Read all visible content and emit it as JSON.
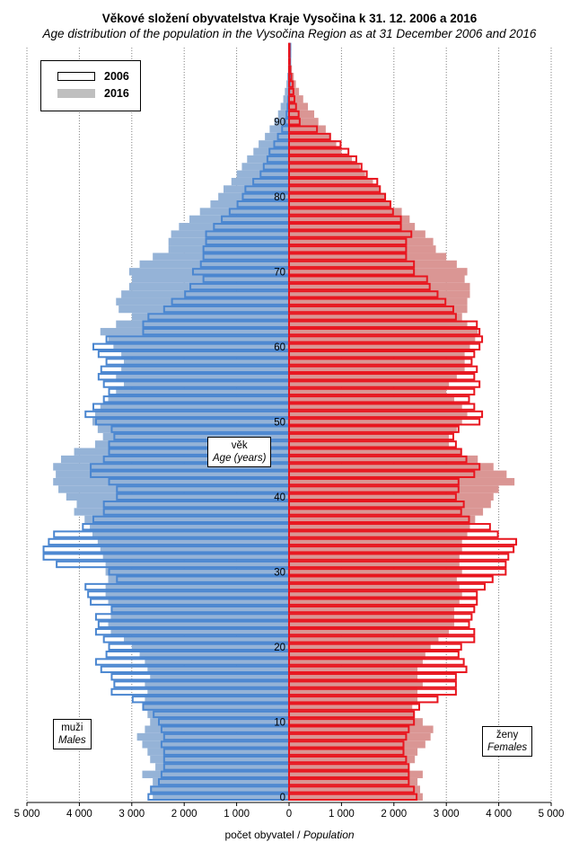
{
  "title": "Věkové složení obyvatelstva  Kraje Vysočina k 31. 12. 2006 a 2016",
  "subtitle": "Age distribution of the population  in the Vysočina Region  as at 31 December 2006 and 2016",
  "legend": {
    "label_2006": "2006",
    "label_2016": "2016"
  },
  "left_box": {
    "cz": "muži",
    "en": "Males"
  },
  "right_box": {
    "cz": "ženy",
    "en": "Females"
  },
  "center_box": {
    "cz": "věk",
    "en": "Age (years)"
  },
  "xlabel_cz": "počet obyvatel /",
  "xlabel_en": "Population",
  "colors": {
    "male_2016": "#95b3d7",
    "male_2006": "#4a86d0",
    "female_2016": "#da9694",
    "female_2006": "#e8151e"
  },
  "chart_data": {
    "type": "bar",
    "orientation": "horizontal-population-pyramid",
    "title": "Věkové složení obyvatelstva  Kraje Vysočina k 31. 12. 2006 a 2016",
    "xlabel": "počet obyvatel / Population",
    "ylabel": "věk / Age (years)",
    "xlim": [
      -5000,
      5000
    ],
    "ylim": [
      0,
      100
    ],
    "x_ticks": [
      -5000,
      -4000,
      -3000,
      -2000,
      -1000,
      0,
      1000,
      2000,
      3000,
      4000,
      5000
    ],
    "x_tick_labels": [
      "5 000",
      "4 000",
      "3 000",
      "2 000",
      "1 000",
      "0",
      "1 000",
      "2 000",
      "3 000",
      "4 000",
      "5 000"
    ],
    "y_ticks": [
      0,
      10,
      20,
      30,
      40,
      50,
      60,
      70,
      80,
      90
    ],
    "ages": [
      0,
      1,
      2,
      3,
      4,
      5,
      6,
      7,
      8,
      9,
      10,
      11,
      12,
      13,
      14,
      15,
      16,
      17,
      18,
      19,
      20,
      21,
      22,
      23,
      24,
      25,
      26,
      27,
      28,
      29,
      30,
      31,
      32,
      33,
      34,
      35,
      36,
      37,
      38,
      39,
      40,
      41,
      42,
      43,
      44,
      45,
      46,
      47,
      48,
      49,
      50,
      51,
      52,
      53,
      54,
      55,
      56,
      57,
      58,
      59,
      60,
      61,
      62,
      63,
      64,
      65,
      66,
      67,
      68,
      69,
      70,
      71,
      72,
      73,
      74,
      75,
      76,
      77,
      78,
      79,
      80,
      81,
      82,
      83,
      84,
      85,
      86,
      87,
      88,
      89,
      90,
      91,
      92,
      93,
      94,
      95,
      96,
      97,
      98,
      99,
      100
    ],
    "series": [
      {
        "name": "muži 2016",
        "values": [
          2600,
          2650,
          2600,
          2800,
          2550,
          2650,
          2700,
          2800,
          2900,
          2750,
          2650,
          2700,
          2800,
          2750,
          2700,
          2750,
          2650,
          2700,
          2750,
          2850,
          3000,
          3150,
          3400,
          3450,
          3400,
          3400,
          3450,
          3500,
          3500,
          3450,
          3500,
          3500,
          3550,
          3600,
          3650,
          3750,
          3800,
          3900,
          4100,
          4050,
          4250,
          4400,
          4500,
          4450,
          4500,
          4350,
          4100,
          3700,
          3550,
          3650,
          3750,
          3700,
          3600,
          3450,
          3300,
          3150,
          3300,
          3200,
          3150,
          3200,
          3350,
          3450,
          3600,
          3300,
          3000,
          3250,
          3300,
          3200,
          3050,
          3000,
          3050,
          2850,
          2600,
          2300,
          2300,
          2250,
          2100,
          1900,
          1700,
          1500,
          1350,
          1250,
          1100,
          1000,
          900,
          800,
          680,
          580,
          460,
          370,
          280,
          210,
          160,
          110,
          80,
          50,
          35,
          20,
          12,
          6,
          3
        ]
      },
      {
        "name": "muži 2006",
        "values": [
          2700,
          2650,
          2500,
          2450,
          2400,
          2400,
          2400,
          2450,
          2400,
          2450,
          2500,
          2600,
          2800,
          3000,
          3400,
          3350,
          3400,
          3600,
          3700,
          3500,
          3450,
          3550,
          3700,
          3650,
          3700,
          3400,
          3800,
          3850,
          3900,
          3300,
          3450,
          4450,
          4700,
          4700,
          4600,
          4500,
          3950,
          3750,
          3550,
          3550,
          3300,
          3300,
          3450,
          3800,
          3800,
          3550,
          3450,
          3450,
          3350,
          3400,
          3700,
          3900,
          3750,
          3550,
          3450,
          3550,
          3650,
          3600,
          3500,
          3650,
          3750,
          3500,
          2800,
          2800,
          2700,
          2400,
          2250,
          2000,
          1900,
          1650,
          1850,
          1700,
          1650,
          1650,
          1600,
          1600,
          1450,
          1300,
          1150,
          1000,
          900,
          850,
          700,
          560,
          500,
          430,
          390,
          300,
          230,
          150,
          90,
          65,
          45,
          30,
          20,
          13,
          8,
          5,
          3,
          2,
          1
        ]
      },
      {
        "name": "ženy 2016",
        "values": [
          2550,
          2500,
          2450,
          2550,
          2300,
          2400,
          2450,
          2600,
          2700,
          2750,
          2550,
          2400,
          2350,
          2450,
          2450,
          2550,
          2450,
          2450,
          2550,
          2600,
          2700,
          2850,
          3050,
          3150,
          3150,
          3150,
          3250,
          3300,
          3250,
          3200,
          3300,
          3250,
          3250,
          3300,
          3300,
          3400,
          3450,
          3550,
          3700,
          3850,
          3900,
          4000,
          4300,
          4150,
          3900,
          3600,
          3300,
          3050,
          3050,
          3200,
          3300,
          3400,
          3300,
          3150,
          3000,
          3050,
          3200,
          3350,
          3350,
          3350,
          3450,
          3550,
          3600,
          3400,
          3300,
          3400,
          3400,
          3450,
          3450,
          3350,
          3400,
          3200,
          3000,
          2800,
          2750,
          2600,
          2400,
          2300,
          2150,
          1950,
          1850,
          1750,
          1600,
          1450,
          1350,
          1200,
          1000,
          900,
          800,
          700,
          560,
          480,
          360,
          270,
          190,
          130,
          90,
          55,
          30,
          18,
          8
        ]
      },
      {
        "name": "ženy 2006",
        "values": [
          2450,
          2400,
          2300,
          2300,
          2300,
          2250,
          2200,
          2200,
          2250,
          2300,
          2400,
          2400,
          2500,
          2850,
          3200,
          3200,
          3200,
          3400,
          3350,
          3250,
          3300,
          3550,
          3550,
          3450,
          3500,
          3550,
          3600,
          3600,
          3750,
          3900,
          4150,
          4150,
          4200,
          4300,
          4350,
          4000,
          3850,
          3450,
          3300,
          3350,
          3200,
          3250,
          3250,
          3550,
          3650,
          3400,
          3300,
          3200,
          3150,
          3250,
          3650,
          3700,
          3550,
          3450,
          3550,
          3650,
          3550,
          3600,
          3500,
          3550,
          3650,
          3700,
          3650,
          3600,
          3200,
          3150,
          3000,
          2850,
          2700,
          2650,
          2400,
          2400,
          2250,
          2250,
          2250,
          2350,
          2150,
          2150,
          2000,
          1950,
          1850,
          1750,
          1700,
          1500,
          1400,
          1300,
          1150,
          1000,
          800,
          550,
          220,
          200,
          150,
          120,
          100,
          90,
          60,
          40,
          30,
          10,
          5
        ]
      }
    ]
  }
}
